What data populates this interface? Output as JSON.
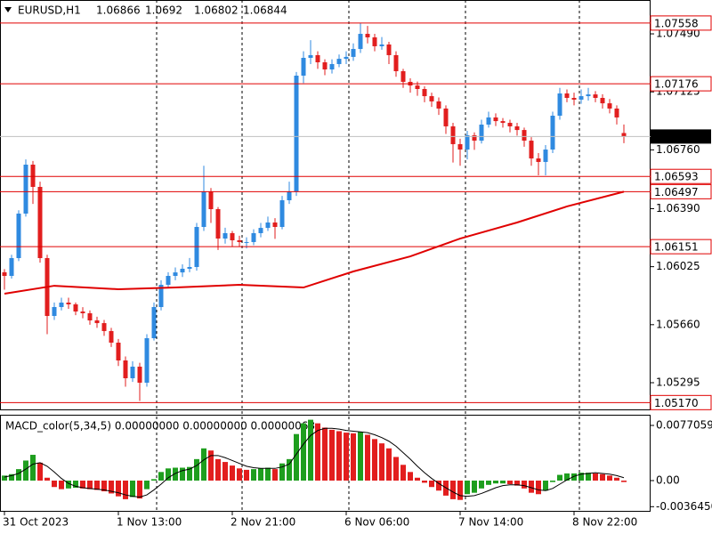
{
  "chart_data": {
    "type": "candlestick",
    "symbol": "EURUSD,H1",
    "bull_color": "#2f8ae0",
    "bear_color": "#e21e1e",
    "ylim": [
      1.05127,
      1.07703
    ],
    "yticks": [
      {
        "value": 1.0749,
        "label": "1.07490"
      },
      1.07125,
      {
        "value": 1.0676,
        "label": "1.06760"
      },
      {
        "value": 1.0639,
        "label": "1.06390"
      },
      1.06025,
      {
        "value": 1.0566,
        "label": "1.05660"
      },
      1.05295
    ],
    "levels": [
      {
        "value": 1.07558,
        "label": "1.07558"
      },
      {
        "value": 1.07176,
        "label": "1.07176"
      },
      {
        "value": 1.06593,
        "label": "1.06593"
      },
      {
        "value": 1.06497,
        "label": "1.06497"
      },
      {
        "value": 1.06151,
        "label": "1.06151"
      },
      {
        "value": 1.0517,
        "label": "1.05170"
      }
    ],
    "level_color": "#e00000",
    "x_labels": [
      {
        "index": 0,
        "label": "31 Oct 2023"
      },
      {
        "index": 16,
        "label": "1 Nov 13:00"
      },
      {
        "index": 32,
        "label": "2 Nov 21:00"
      },
      {
        "index": 48,
        "label": "6 Nov 06:00"
      },
      {
        "index": 64,
        "label": "7 Nov 14:00"
      },
      {
        "index": 80,
        "label": "8 Nov 22:00"
      }
    ],
    "candles": [
      [
        1.0599,
        1.0601,
        1.0588,
        1.05967
      ],
      [
        1.05967,
        1.061,
        1.0595,
        1.06079
      ],
      [
        1.06079,
        1.0638,
        1.0606,
        1.06359
      ],
      [
        1.06359,
        1.067,
        1.0634,
        1.06667
      ],
      [
        1.06667,
        1.0669,
        1.0642,
        1.06527
      ],
      [
        1.06527,
        1.0656,
        1.0605,
        1.06079
      ],
      [
        1.06079,
        1.061,
        1.056,
        1.05715
      ],
      [
        1.05715,
        1.058,
        1.0569,
        1.05771
      ],
      [
        1.05771,
        1.0583,
        1.0575,
        1.05799
      ],
      [
        1.05799,
        1.0583,
        1.0576,
        1.05788
      ],
      [
        1.05788,
        1.058,
        1.0572,
        1.05743
      ],
      [
        1.05743,
        1.0577,
        1.057,
        1.05732
      ],
      [
        1.05732,
        1.0575,
        1.0566,
        1.05687
      ],
      [
        1.05687,
        1.0571,
        1.0564,
        1.0567
      ],
      [
        1.0567,
        1.0569,
        1.0559,
        1.0562
      ],
      [
        1.0562,
        1.0564,
        1.0552,
        1.05547
      ],
      [
        1.05547,
        1.0557,
        1.054,
        1.05435
      ],
      [
        1.05435,
        1.0546,
        1.0527,
        1.05323
      ],
      [
        1.05323,
        1.0543,
        1.053,
        1.05396
      ],
      [
        1.05396,
        1.0542,
        1.0518,
        1.05295
      ],
      [
        1.05295,
        1.056,
        1.0527,
        1.05575
      ],
      [
        1.05575,
        1.058,
        1.0556,
        1.05771
      ],
      [
        1.05771,
        1.0594,
        1.0575,
        1.05911
      ],
      [
        1.05911,
        1.0599,
        1.0589,
        1.05967
      ],
      [
        1.05967,
        1.0602,
        1.0594,
        1.05989
      ],
      [
        1.05989,
        1.0604,
        1.0596,
        1.06012
      ],
      [
        1.06012,
        1.0608,
        1.0599,
        1.06023
      ],
      [
        1.06023,
        1.063,
        1.06,
        1.06275
      ],
      [
        1.06275,
        1.0666,
        1.0625,
        1.06499
      ],
      [
        1.06499,
        1.0652,
        1.063,
        1.06387
      ],
      [
        1.06387,
        1.064,
        1.0613,
        1.06202
      ],
      [
        1.06202,
        1.0627,
        1.0617,
        1.06236
      ],
      [
        1.06236,
        1.0625,
        1.0615,
        1.06191
      ],
      [
        1.06191,
        1.0622,
        1.0615,
        1.0618
      ],
      [
        1.0618,
        1.0621,
        1.0614,
        1.0618
      ],
      [
        1.0618,
        1.0626,
        1.0616,
        1.06236
      ],
      [
        1.06236,
        1.063,
        1.0621,
        1.06269
      ],
      [
        1.06269,
        1.0634,
        1.0625,
        1.06303
      ],
      [
        1.06303,
        1.0633,
        1.062,
        1.06275
      ],
      [
        1.06275,
        1.0647,
        1.0626,
        1.06443
      ],
      [
        1.06443,
        1.0656,
        1.0642,
        1.06499
      ],
      [
        1.06499,
        1.0725,
        1.0647,
        1.07227
      ],
      [
        1.07227,
        1.0738,
        1.0718,
        1.07339
      ],
      [
        1.07339,
        1.0745,
        1.073,
        1.07356
      ],
      [
        1.07356,
        1.0738,
        1.0727,
        1.07311
      ],
      [
        1.07311,
        1.0733,
        1.0723,
        1.07266
      ],
      [
        1.07266,
        1.0733,
        1.0724,
        1.073
      ],
      [
        1.073,
        1.0736,
        1.0728,
        1.07333
      ],
      [
        1.07333,
        1.0738,
        1.073,
        1.07345
      ],
      [
        1.07345,
        1.0743,
        1.0732,
        1.07395
      ],
      [
        1.07395,
        1.0756,
        1.0737,
        1.0749
      ],
      [
        1.0749,
        1.0754,
        1.0743,
        1.07468
      ],
      [
        1.07468,
        1.0749,
        1.0738,
        1.07412
      ],
      [
        1.07412,
        1.0747,
        1.0739,
        1.07423
      ],
      [
        1.07423,
        1.0744,
        1.073,
        1.07356
      ],
      [
        1.07356,
        1.0738,
        1.0722,
        1.07255
      ],
      [
        1.07255,
        1.0727,
        1.0715,
        1.07188
      ],
      [
        1.07188,
        1.0721,
        1.0712,
        1.07165
      ],
      [
        1.07165,
        1.0719,
        1.071,
        1.07143
      ],
      [
        1.07143,
        1.0716,
        1.0706,
        1.07098
      ],
      [
        1.07098,
        1.0712,
        1.0703,
        1.07065
      ],
      [
        1.07065,
        1.0709,
        1.0698,
        1.0702
      ],
      [
        1.0702,
        1.0704,
        1.0686,
        1.06908
      ],
      [
        1.06908,
        1.0693,
        1.0668,
        1.06796
      ],
      [
        1.06796,
        1.0683,
        1.0666,
        1.06762
      ],
      [
        1.06762,
        1.0688,
        1.067,
        1.06852
      ],
      [
        1.06852,
        1.0687,
        1.0676,
        1.06818
      ],
      [
        1.06818,
        1.0695,
        1.068,
        1.06919
      ],
      [
        1.06919,
        1.07,
        1.069,
        1.06964
      ],
      [
        1.06964,
        1.0699,
        1.0691,
        1.06941
      ],
      [
        1.06941,
        1.0696,
        1.069,
        1.0693
      ],
      [
        1.0693,
        1.0695,
        1.0687,
        1.06908
      ],
      [
        1.06908,
        1.0693,
        1.0685,
        1.06885
      ],
      [
        1.06885,
        1.069,
        1.0678,
        1.06818
      ],
      [
        1.06818,
        1.0684,
        1.0666,
        1.06706
      ],
      [
        1.06706,
        1.0674,
        1.066,
        1.06684
      ],
      [
        1.06684,
        1.0679,
        1.066,
        1.06762
      ],
      [
        1.06762,
        1.07,
        1.0674,
        1.06975
      ],
      [
        1.06975,
        1.0715,
        1.0695,
        1.07115
      ],
      [
        1.07115,
        1.0714,
        1.0706,
        1.07087
      ],
      [
        1.07087,
        1.0712,
        1.0704,
        1.07076
      ],
      [
        1.07076,
        1.0714,
        1.0705,
        1.07098
      ],
      [
        1.07098,
        1.0715,
        1.0707,
        1.07109
      ],
      [
        1.07109,
        1.0713,
        1.0706,
        1.07087
      ],
      [
        1.07087,
        1.0711,
        1.0702,
        1.07053
      ],
      [
        1.07053,
        1.0708,
        1.0699,
        1.0702
      ],
      [
        1.0702,
        1.0704,
        1.0692,
        1.06964
      ],
      [
        1.06866,
        1.0692,
        1.06802,
        1.06844
      ]
    ],
    "ma": {
      "color": "#e00000",
      "x": [
        0,
        7,
        16,
        24,
        33,
        42,
        49,
        57,
        64,
        72,
        79,
        87
      ],
      "values": [
        1.05855,
        1.05905,
        1.05883,
        1.05894,
        1.05911,
        1.05894,
        1.05995,
        1.0609,
        1.06202,
        1.06303,
        1.06404,
        1.06497
      ]
    },
    "macd": {
      "title": "MACD_color(5,34,5) 0.00000000 0.00000000 0.00000063",
      "up_color": "#1e9e1e",
      "down_color": "#e21e1e",
      "signal_color": "#000000",
      "ylim": [
        -0.00398,
        0.0087
      ],
      "yticks": [
        0.0077059,
        {
          "value": 0,
          "label": "0.00"
        },
        {
          "value": -0.003645,
          "label": "-0.0036450"
        }
      ],
      "histogram": [
        0.0007,
        0.0009,
        0.0016,
        0.0028,
        0.0036,
        0.0025,
        0.0004,
        -0.0009,
        -0.0012,
        -0.0011,
        -0.001,
        -0.0011,
        -0.0012,
        -0.0013,
        -0.0015,
        -0.0018,
        -0.0022,
        -0.0026,
        -0.0023,
        -0.0025,
        -0.0012,
        0.0002,
        0.0012,
        0.0017,
        0.0018,
        0.0018,
        0.0019,
        0.003,
        0.0045,
        0.0042,
        0.003,
        0.0026,
        0.0021,
        0.0017,
        0.0015,
        0.0016,
        0.0017,
        0.0018,
        0.0016,
        0.0024,
        0.003,
        0.0065,
        0.008,
        0.0085,
        0.008,
        0.0074,
        0.0071,
        0.0069,
        0.0067,
        0.0066,
        0.0068,
        0.0064,
        0.0058,
        0.0052,
        0.0045,
        0.0033,
        0.0022,
        0.0012,
        0.0004,
        -0.0003,
        -0.0009,
        -0.0014,
        -0.0021,
        -0.0026,
        -0.0027,
        -0.0019,
        -0.0017,
        -0.0011,
        -0.0006,
        -0.0004,
        -0.0004,
        -0.0005,
        -0.0007,
        -0.0011,
        -0.0017,
        -0.0019,
        -0.0014,
        -0.0002,
        0.0008,
        0.001,
        0.001,
        0.0011,
        0.0011,
        0.001,
        0.0009,
        0.0007,
        0.0004,
        -0.0002
      ],
      "signal": [
        0.0005,
        0.0007,
        0.001,
        0.0016,
        0.0023,
        0.0025,
        0.002,
        0.0012,
        0.0003,
        -0.0004,
        -0.0008,
        -0.001,
        -0.0011,
        -0.0012,
        -0.0013,
        -0.0015,
        -0.0017,
        -0.002,
        -0.0022,
        -0.0023,
        -0.002,
        -0.0013,
        -0.0005,
        0.0004,
        0.001,
        0.0014,
        0.0016,
        0.0021,
        0.0029,
        0.0035,
        0.0035,
        0.0032,
        0.0028,
        0.0024,
        0.002,
        0.0018,
        0.0017,
        0.0017,
        0.0017,
        0.0019,
        0.0023,
        0.0037,
        0.0051,
        0.0063,
        0.007,
        0.0073,
        0.0073,
        0.0072,
        0.007,
        0.0069,
        0.0068,
        0.0067,
        0.0064,
        0.006,
        0.0055,
        0.0048,
        0.0039,
        0.003,
        0.002,
        0.0011,
        0.0003,
        -0.0004,
        -0.001,
        -0.0016,
        -0.0021,
        -0.0022,
        -0.0021,
        -0.0018,
        -0.0014,
        -0.001,
        -0.0007,
        -0.0006,
        -0.0006,
        -0.0007,
        -0.001,
        -0.0013,
        -0.0014,
        -0.0011,
        -0.0005,
        0.0001,
        0.0006,
        0.0009,
        0.001,
        0.0011,
        0.001,
        0.0009,
        0.0007,
        0.0004
      ]
    }
  }
}
